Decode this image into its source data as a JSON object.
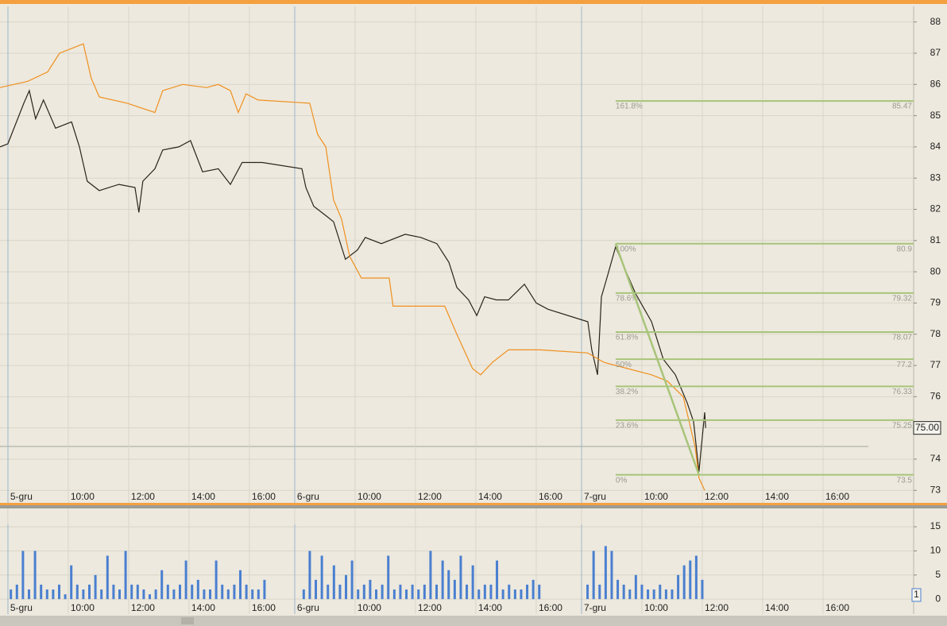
{
  "chart_data": [
    {
      "type": "line",
      "xlim": [
        -0.26,
        30
      ],
      "ylim": [
        72.6,
        88.5
      ],
      "xticks": [
        {
          "value": 0,
          "label": "5-gru"
        },
        {
          "value": 2,
          "label": "10:00"
        },
        {
          "value": 4,
          "label": "12:00"
        },
        {
          "value": 6,
          "label": "14:00"
        },
        {
          "value": 8,
          "label": "16:00"
        },
        {
          "value": 9.5,
          "label": "6-gru"
        },
        {
          "value": 11.5,
          "label": "10:00"
        },
        {
          "value": 13.5,
          "label": "12:00"
        },
        {
          "value": 15.5,
          "label": "14:00"
        },
        {
          "value": 17.5,
          "label": "16:00"
        },
        {
          "value": 19,
          "label": "7-gru"
        },
        {
          "value": 21,
          "label": "10:00"
        },
        {
          "value": 23,
          "label": "12:00"
        },
        {
          "value": 25,
          "label": "14:00"
        },
        {
          "value": 27,
          "label": "16:00"
        }
      ],
      "yticks": [
        73,
        74,
        75,
        76,
        77,
        78,
        79,
        80,
        81,
        82,
        83,
        84,
        85,
        86,
        87,
        88
      ],
      "grid": true,
      "series": [
        {
          "color": "#2b2418",
          "x": [
            -0.26,
            0.0,
            0.53,
            0.71,
            0.92,
            1.18,
            1.58,
            2.11,
            2.37,
            2.63,
            3.03,
            3.68,
            4.21,
            4.34,
            4.47,
            4.87,
            5.13,
            5.66,
            6.05,
            6.45,
            6.97,
            7.37,
            7.76,
            8.42,
            9.74,
            9.87,
            10.13,
            10.53,
            10.79,
            11.18,
            11.58,
            11.84,
            12.37,
            13.16,
            13.68,
            14.21,
            14.61,
            14.87,
            15.26,
            15.53,
            15.79,
            16.18,
            16.58,
            17.11,
            17.5,
            17.89,
            19.21,
            19.34,
            19.53,
            19.66,
            19.87,
            20.13,
            20.39,
            20.79,
            21.32,
            21.71,
            22.11,
            22.5,
            22.71,
            22.89,
            23.08,
            23.11
          ],
          "values": [
            84.0,
            84.1,
            85.4,
            85.8,
            84.9,
            85.5,
            84.6,
            84.8,
            84.0,
            82.9,
            82.6,
            82.8,
            82.7,
            81.9,
            82.9,
            83.3,
            83.9,
            84.0,
            84.2,
            83.2,
            83.3,
            82.8,
            83.5,
            83.5,
            83.3,
            82.7,
            82.1,
            81.8,
            81.6,
            80.4,
            80.7,
            81.1,
            80.9,
            81.2,
            81.1,
            80.9,
            80.3,
            79.5,
            79.1,
            78.6,
            79.2,
            79.1,
            79.1,
            79.6,
            79.0,
            78.8,
            78.4,
            77.5,
            76.7,
            79.2,
            79.9,
            80.8,
            80.2,
            79.3,
            78.4,
            77.2,
            76.7,
            75.8,
            75.2,
            73.6,
            75.5,
            75.0
          ]
        },
        {
          "color": "#f0901e",
          "x": [
            -0.26,
            0.66,
            1.32,
            1.71,
            2.24,
            2.5,
            2.76,
            3.03,
            3.95,
            4.87,
            5.13,
            5.79,
            6.58,
            6.97,
            7.37,
            7.63,
            7.89,
            8.29,
            10.0,
            10.26,
            10.53,
            10.79,
            11.05,
            11.32,
            11.71,
            12.63,
            12.76,
            14.47,
            14.87,
            15.39,
            15.66,
            16.05,
            16.58,
            17.63,
            19.21,
            19.74,
            20.53,
            21.32,
            21.84,
            22.37,
            22.76,
            22.89,
            23.08
          ],
          "values": [
            85.9,
            86.1,
            86.4,
            87.0,
            87.2,
            87.3,
            86.2,
            85.6,
            85.4,
            85.1,
            85.8,
            86.0,
            85.9,
            86.0,
            85.8,
            85.1,
            85.7,
            85.5,
            85.4,
            84.4,
            84.0,
            82.3,
            81.7,
            80.5,
            79.8,
            79.8,
            78.9,
            78.9,
            78.0,
            76.9,
            76.7,
            77.1,
            77.5,
            77.5,
            77.4,
            77.1,
            76.9,
            76.7,
            76.5,
            76.0,
            74.4,
            73.4,
            73.0
          ]
        }
      ],
      "fibonacci": {
        "color": "#a8c47a",
        "x": [
          20.13,
          22.89
        ],
        "start": 80.9,
        "end": 73.5,
        "levels": [
          {
            "label": "161.8%",
            "value": 85.47
          },
          {
            "label": "100%",
            "value": 80.9
          },
          {
            "label": "78.6%",
            "value": 79.32
          },
          {
            "label": "61.8%",
            "value": 78.07
          },
          {
            "label": "50%",
            "value": 77.2
          },
          {
            "label": "38.2%",
            "value": 76.33
          },
          {
            "label": "23.6%",
            "value": 75.25
          },
          {
            "label": "0%",
            "value": 73.5
          }
        ]
      },
      "last_price": {
        "value": 75.0,
        "value_label": "75.00"
      }
    },
    {
      "type": "bar",
      "color": "#4a7fd0",
      "xlim": [
        -0.26,
        30
      ],
      "ylim": [
        -3.1,
        18.8
      ],
      "xticks": [
        {
          "value": 0,
          "label": "5-gru"
        },
        {
          "value": 2,
          "label": "10:00"
        },
        {
          "value": 4,
          "label": "12:00"
        },
        {
          "value": 6,
          "label": "14:00"
        },
        {
          "value": 8,
          "label": "16:00"
        },
        {
          "value": 9.5,
          "label": "6-gru"
        },
        {
          "value": 11.5,
          "label": "10:00"
        },
        {
          "value": 13.5,
          "label": "12:00"
        },
        {
          "value": 15.5,
          "label": "14:00"
        },
        {
          "value": 17.5,
          "label": "16:00"
        },
        {
          "value": 19,
          "label": "7-gru"
        },
        {
          "value": 21,
          "label": "10:00"
        },
        {
          "value": 23,
          "label": "12:00"
        },
        {
          "value": 25,
          "label": "14:00"
        },
        {
          "value": 27,
          "label": "16:00"
        }
      ],
      "yticks": [
        0,
        5,
        10,
        15
      ],
      "grid": true,
      "x": [
        0.1,
        0.3,
        0.5,
        0.7,
        0.9,
        1.1,
        1.3,
        1.5,
        1.7,
        1.9,
        2.1,
        2.3,
        2.5,
        2.7,
        2.9,
        3.1,
        3.3,
        3.5,
        3.7,
        3.9,
        4.1,
        4.3,
        4.5,
        4.7,
        4.9,
        5.1,
        5.3,
        5.5,
        5.7,
        5.9,
        6.1,
        6.3,
        6.5,
        6.7,
        6.9,
        7.1,
        7.3,
        7.5,
        7.7,
        7.9,
        8.1,
        8.3,
        8.5,
        9.8,
        10.0,
        10.2,
        10.4,
        10.6,
        10.8,
        11.0,
        11.2,
        11.4,
        11.6,
        11.8,
        12.0,
        12.2,
        12.4,
        12.6,
        12.8,
        13.0,
        13.2,
        13.4,
        13.6,
        13.8,
        14.0,
        14.2,
        14.4,
        14.6,
        14.8,
        15.0,
        15.2,
        15.4,
        15.6,
        15.8,
        16.0,
        16.2,
        16.4,
        16.6,
        16.8,
        17.0,
        17.2,
        17.4,
        17.6,
        19.2,
        19.4,
        19.6,
        19.8,
        20.0,
        20.2,
        20.4,
        20.6,
        20.8,
        21.0,
        21.2,
        21.4,
        21.6,
        21.8,
        22.0,
        22.2,
        22.4,
        22.6,
        22.8,
        23.0
      ],
      "values": [
        2,
        3,
        10,
        2,
        10,
        3,
        2,
        2,
        3,
        1,
        7,
        3,
        2,
        3,
        5,
        2,
        9,
        3,
        2,
        10,
        3,
        3,
        2,
        1,
        2,
        6,
        3,
        2,
        3,
        8,
        3,
        4,
        2,
        2,
        8,
        3,
        2,
        3,
        6,
        3,
        2,
        2,
        4,
        2,
        10,
        4,
        9,
        3,
        7,
        3,
        5,
        8,
        2,
        3,
        4,
        2,
        3,
        9,
        2,
        3,
        2,
        3,
        2,
        3,
        10,
        3,
        8,
        6,
        4,
        9,
        3,
        7,
        2,
        3,
        3,
        8,
        2,
        3,
        2,
        2,
        3,
        4,
        3,
        3,
        10,
        3,
        11,
        10,
        4,
        3,
        2,
        5,
        3,
        2,
        2,
        3,
        2,
        2,
        5,
        7,
        8,
        9,
        4
      ],
      "annotation": "1"
    }
  ]
}
